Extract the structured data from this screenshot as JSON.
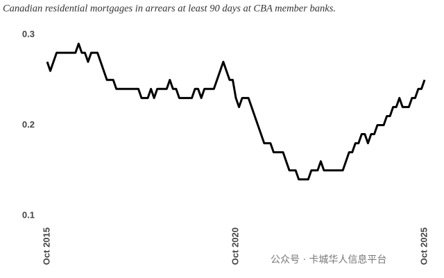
{
  "chart_data": {
    "type": "line",
    "title": "Canadian residential mortgages in arrears at least 90 days at CBA member banks.",
    "watermark": "公众号 · 卡城华人信息平台",
    "categories": [
      "Oct 2015",
      null,
      null,
      null,
      null,
      null,
      null,
      null,
      null,
      null,
      null,
      null,
      null,
      null,
      null,
      null,
      null,
      null,
      null,
      null,
      null,
      null,
      null,
      null,
      null,
      null,
      null,
      null,
      null,
      null,
      null,
      null,
      null,
      null,
      null,
      null,
      null,
      null,
      null,
      null,
      null,
      null,
      null,
      null,
      null,
      null,
      null,
      null,
      null,
      null,
      null,
      null,
      null,
      null,
      null,
      null,
      null,
      null,
      null,
      null,
      "Oct 2020",
      null,
      null,
      null,
      null,
      null,
      null,
      null,
      null,
      null,
      null,
      null,
      null,
      null,
      null,
      null,
      null,
      null,
      null,
      null,
      null,
      null,
      null,
      null,
      null,
      null,
      null,
      null,
      null,
      null,
      null,
      null,
      null,
      null,
      null,
      null,
      null,
      null,
      null,
      null,
      null,
      null,
      null,
      null,
      null,
      null,
      null,
      null,
      null,
      null,
      null,
      null,
      null,
      null,
      null,
      null,
      null,
      null,
      null,
      null,
      "Oct 2025"
    ],
    "series": [
      {
        "color": "#000000",
        "values": [
          0.27,
          0.26,
          0.27,
          0.28,
          0.28,
          0.28,
          0.28,
          0.28,
          0.28,
          0.28,
          0.29,
          0.28,
          0.28,
          0.27,
          0.28,
          0.28,
          0.28,
          0.27,
          0.26,
          0.25,
          0.25,
          0.25,
          0.24,
          0.24,
          0.24,
          0.24,
          0.24,
          0.24,
          0.24,
          0.24,
          0.23,
          0.23,
          0.23,
          0.24,
          0.23,
          0.24,
          0.24,
          0.24,
          0.24,
          0.25,
          0.24,
          0.24,
          0.23,
          0.23,
          0.23,
          0.23,
          0.23,
          0.24,
          0.24,
          0.23,
          0.24,
          0.24,
          0.24,
          0.24,
          0.25,
          0.26,
          0.27,
          0.26,
          0.25,
          0.25,
          0.23,
          0.22,
          0.23,
          0.23,
          0.23,
          0.22,
          0.21,
          0.2,
          0.19,
          0.18,
          0.18,
          0.18,
          0.17,
          0.17,
          0.17,
          0.17,
          0.16,
          0.15,
          0.15,
          0.15,
          0.14,
          0.14,
          0.14,
          0.14,
          0.15,
          0.15,
          0.15,
          0.16,
          0.15,
          0.15,
          0.15,
          0.15,
          0.15,
          0.15,
          0.15,
          0.16,
          0.17,
          0.17,
          0.18,
          0.18,
          0.19,
          0.19,
          0.18,
          0.19,
          0.19,
          0.2,
          0.2,
          0.2,
          0.21,
          0.21,
          0.22,
          0.22,
          0.23,
          0.22,
          0.22,
          0.22,
          0.23,
          0.23,
          0.24,
          0.24,
          0.25
        ]
      }
    ],
    "ylim": [
      0.1,
      0.3
    ],
    "yticks": [
      0.3,
      0.2,
      0.1
    ],
    "grid": false
  }
}
